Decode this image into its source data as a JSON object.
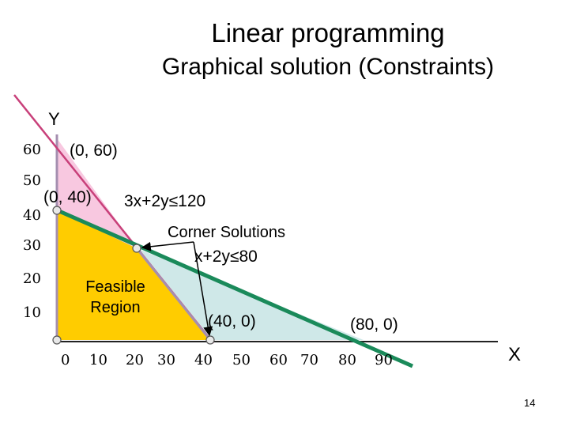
{
  "slide": {
    "title": "Linear programming",
    "subtitle": "Graphical solution (Constraints)",
    "page_number": "14"
  },
  "axes": {
    "y_label": "Y",
    "x_label": "X",
    "y_ticks": [
      "60",
      "50",
      "40",
      "30",
      "20",
      "10"
    ],
    "x_ticks": [
      "0",
      "10",
      "20",
      "30",
      "40",
      "50",
      "60",
      "70",
      "80",
      "90"
    ]
  },
  "labels": {
    "point_0_60": "(0, 60)",
    "point_0_40": "(0, 40)",
    "constraint_1": "3x+2y≤120",
    "corner_solutions": "Corner Solutions",
    "constraint_2": "x+2y≤80",
    "feasible_region_line1": "Feasible",
    "feasible_region_line2": "Region",
    "point_40_0": "(40, 0)",
    "point_80_0": "(80, 0)"
  },
  "colors": {
    "feasible": "#ffcc00",
    "pink_region": "#f8c8e0",
    "teal_region": "#cfe8e8",
    "constraint_1_line": "#c8407a",
    "constraint_2_line": "#1a8a5a",
    "boundary_line": "#a58fb0"
  }
}
